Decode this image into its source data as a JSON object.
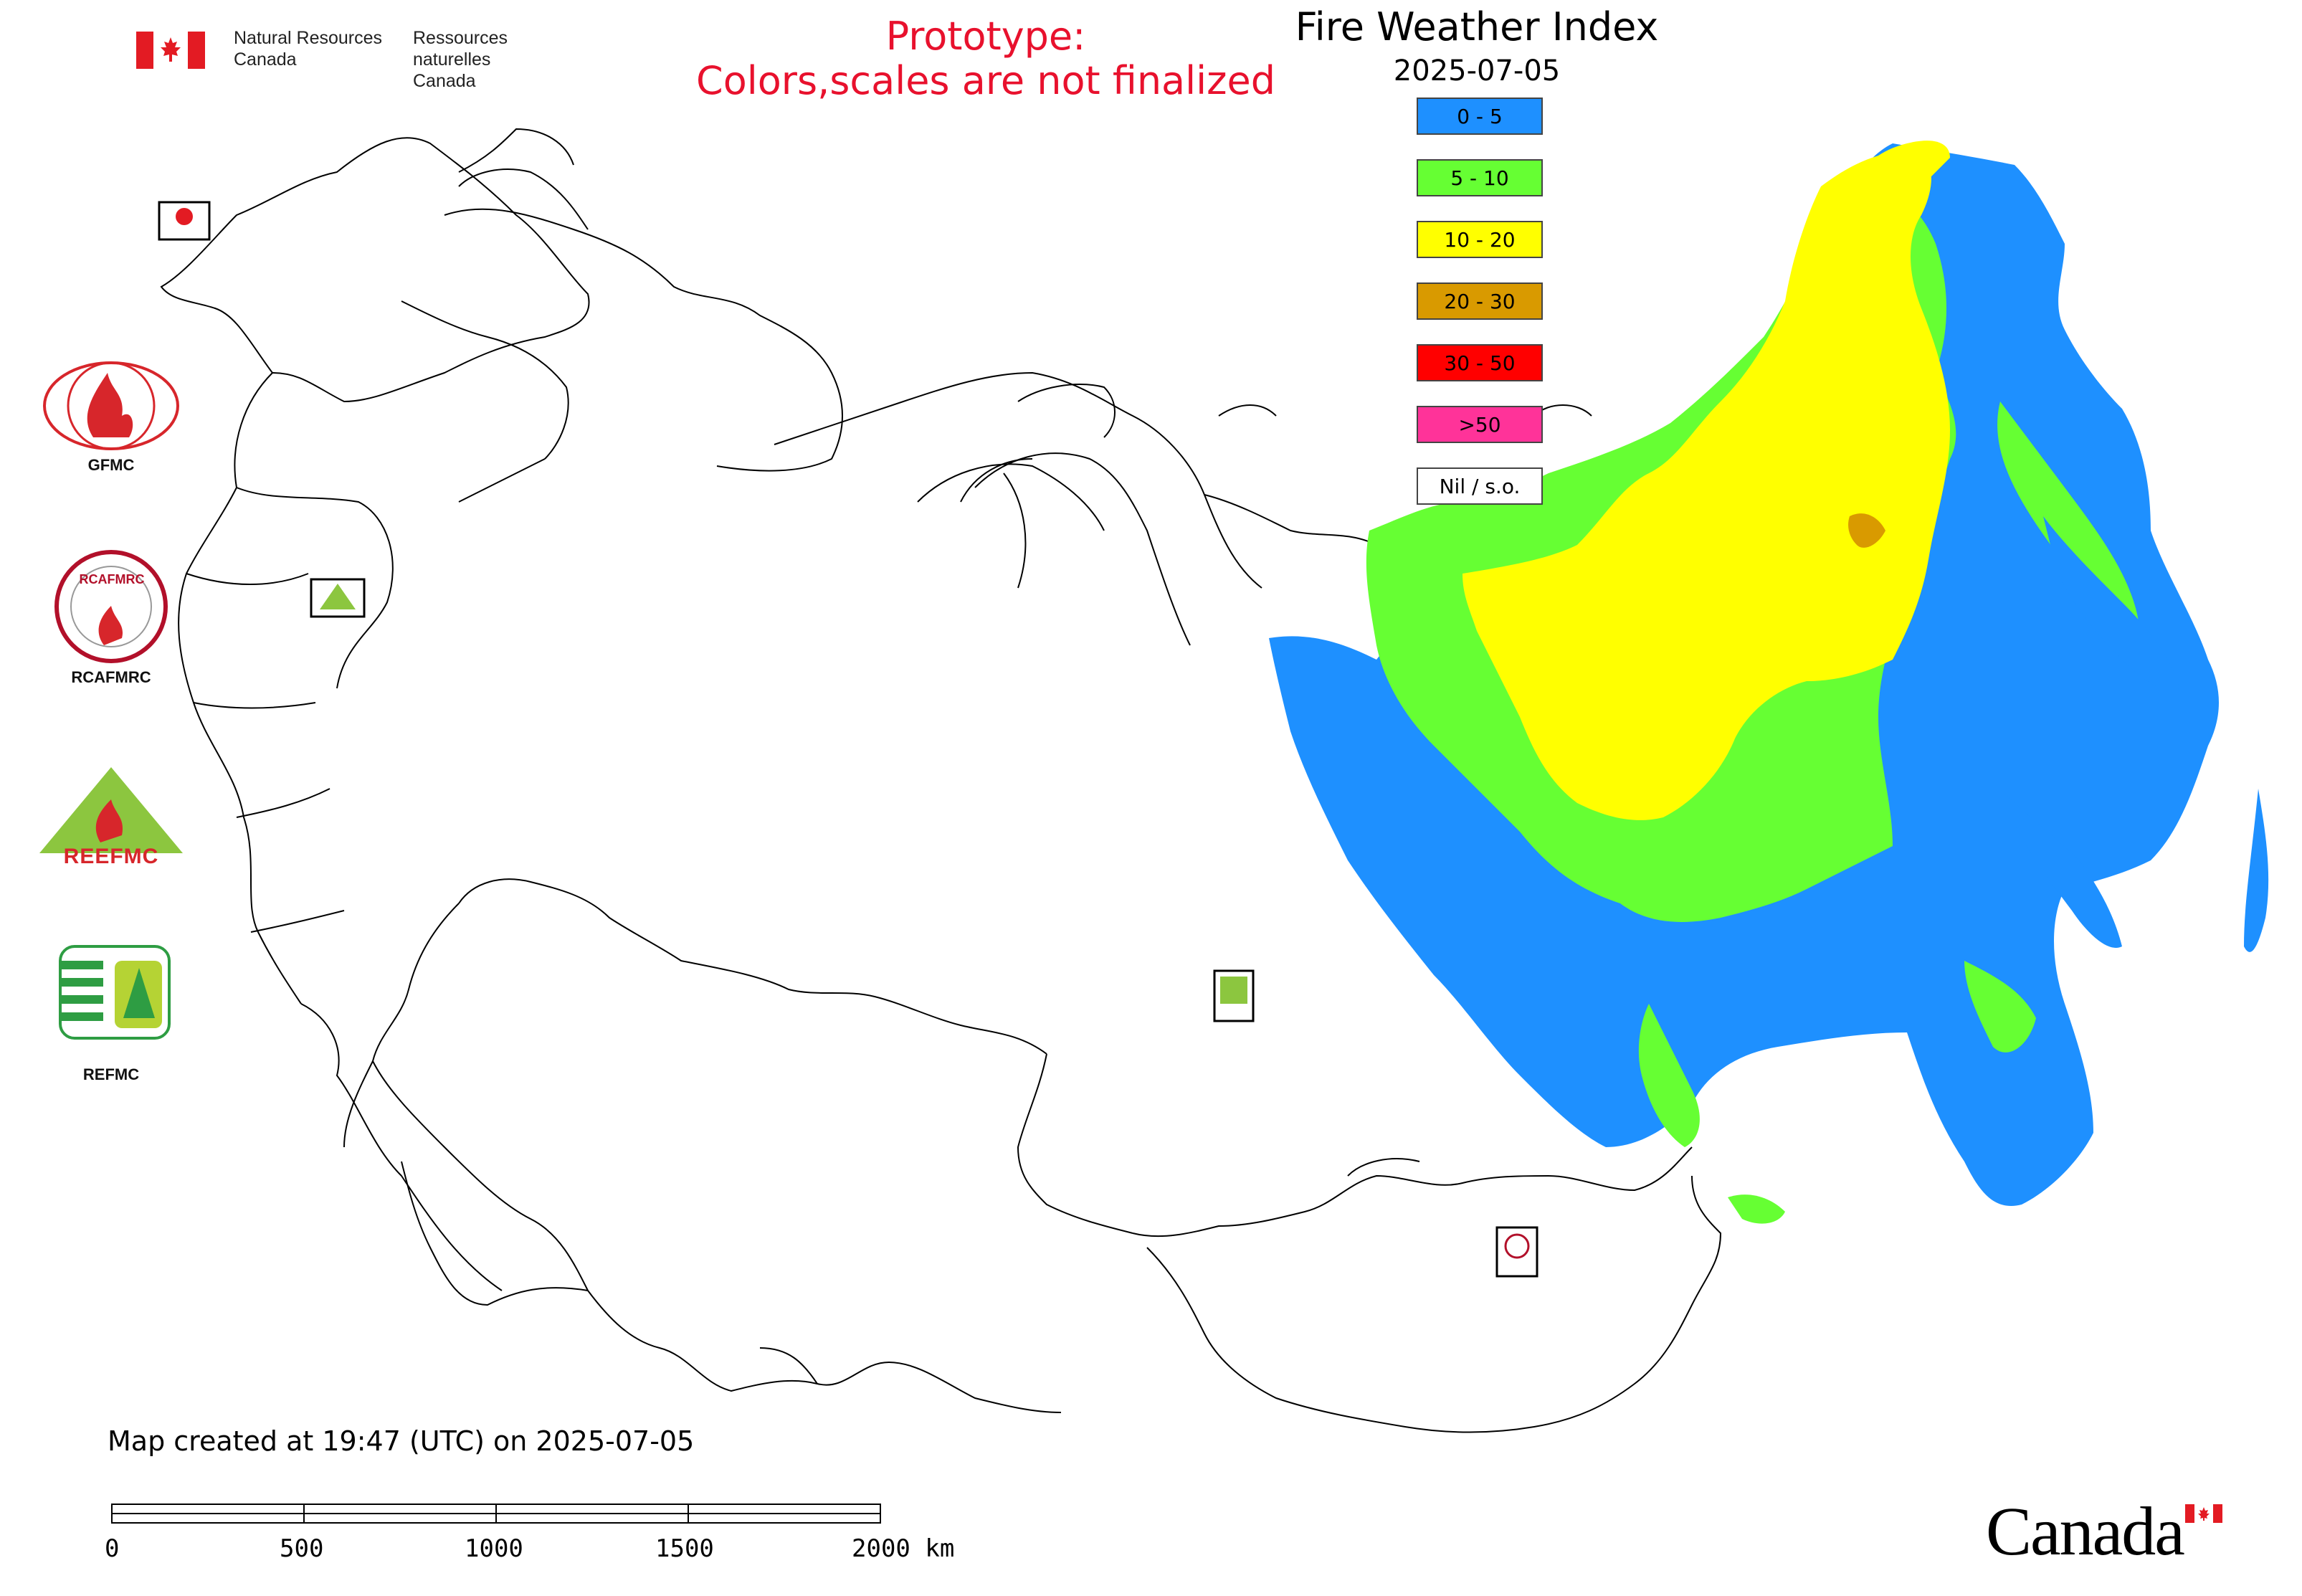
{
  "header": {
    "agency_en_1": "Natural Resources",
    "agency_en_2": "Canada",
    "agency_fr_1": "Ressources naturelles",
    "agency_fr_2": "Canada",
    "prototype_line1": "Prototype:",
    "prototype_line2": "Colors,scales are not finalized"
  },
  "map": {
    "title": "Fire Weather Index",
    "date": "2025-07-05",
    "created_text": "Map created at 19:47 (UTC) on 2025-07-05",
    "wordmark": "Canada"
  },
  "legend": [
    {
      "label": "0 - 5",
      "color": "#1e90ff"
    },
    {
      "label": "5 - 10",
      "color": "#66ff33"
    },
    {
      "label": "10 - 20",
      "color": "#ffff00"
    },
    {
      "label": "20 - 30",
      "color": "#d99a00"
    },
    {
      "label": "30 - 50",
      "color": "#ff0000"
    },
    {
      "label": ">50",
      "color": "#ff3399"
    },
    {
      "label": "Nil / s.o.",
      "color": "#ffffff"
    }
  ],
  "centers": {
    "gfmc": "GFMC",
    "rcafmrc": "RCAFMRC",
    "reefmc": "REEFMC",
    "refmc": "REFMC",
    "rcafmrc_short": "RCAFMRC",
    "reefmc_logo_text": "REEFMC"
  },
  "scale": {
    "ticks": [
      "0",
      "500",
      "1000",
      "1500",
      "2000 km"
    ]
  },
  "colors": {
    "blue": "#1e90ff",
    "green": "#66ff33",
    "yellow": "#ffff00",
    "orange": "#d99a00",
    "red": "#ff0000",
    "pink": "#ff3399",
    "prototype_red": "#e8112d"
  }
}
